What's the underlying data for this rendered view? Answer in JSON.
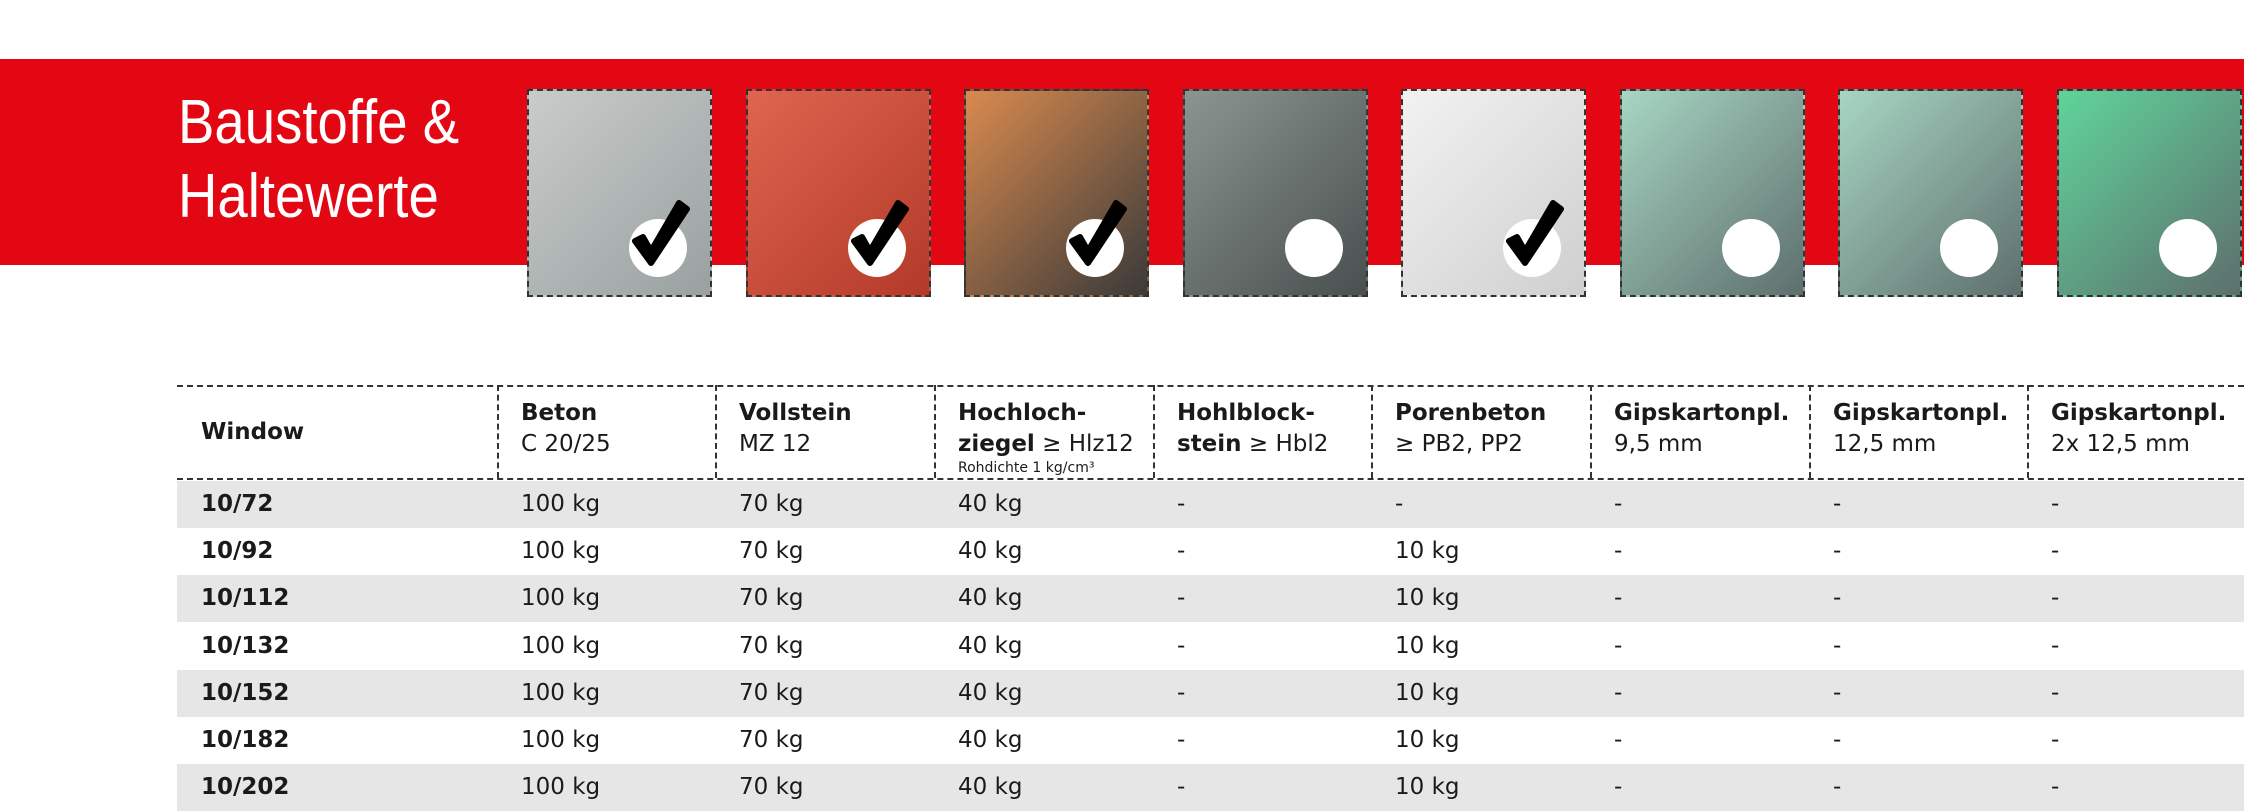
{
  "header": {
    "title_line1": "Baustoffe &",
    "title_line2": "Haltewerte"
  },
  "table": {
    "headers": [
      {
        "title": "Window"
      },
      {
        "title": "Beton",
        "sub": "C 20/25"
      },
      {
        "title": "Vollstein",
        "sub": "MZ 12"
      },
      {
        "title": "Hochloch-",
        "title2": "ziegel",
        "sub": "≥ Hlz12",
        "note": "Rohdichte 1 kg/cm³"
      },
      {
        "title": "Hohlblock-",
        "title2": "stein",
        "sub": "≥ Hbl2"
      },
      {
        "title": "Porenbeton",
        "sub": "≥ PB2, PP2"
      },
      {
        "title": "Gipskartonpl.",
        "sub": "9,5 mm"
      },
      {
        "title": "Gipskartonpl.",
        "sub": "12,5 mm"
      },
      {
        "title": "Gipskartonpl.",
        "sub": "2x 12,5 mm"
      }
    ],
    "rows": [
      [
        "10/72",
        "100 kg",
        "70 kg",
        "40 kg",
        "-",
        "-",
        "-",
        "-",
        "-"
      ],
      [
        "10/92",
        "100 kg",
        "70 kg",
        "40 kg",
        "-",
        "10 kg",
        "-",
        "-",
        "-"
      ],
      [
        "10/112",
        "100 kg",
        "70 kg",
        "40 kg",
        "-",
        "10 kg",
        "-",
        "-",
        "-"
      ],
      [
        "10/132",
        "100 kg",
        "70 kg",
        "40 kg",
        "-",
        "10 kg",
        "-",
        "-",
        "-"
      ],
      [
        "10/152",
        "100 kg",
        "70 kg",
        "40 kg",
        "-",
        "10 kg",
        "-",
        "-",
        "-"
      ],
      [
        "10/182",
        "100 kg",
        "70 kg",
        "40 kg",
        "-",
        "10 kg",
        "-",
        "-",
        "-"
      ],
      [
        "10/202",
        "100 kg",
        "70 kg",
        "40 kg",
        "-",
        "10 kg",
        "-",
        "-",
        "-"
      ]
    ]
  }
}
